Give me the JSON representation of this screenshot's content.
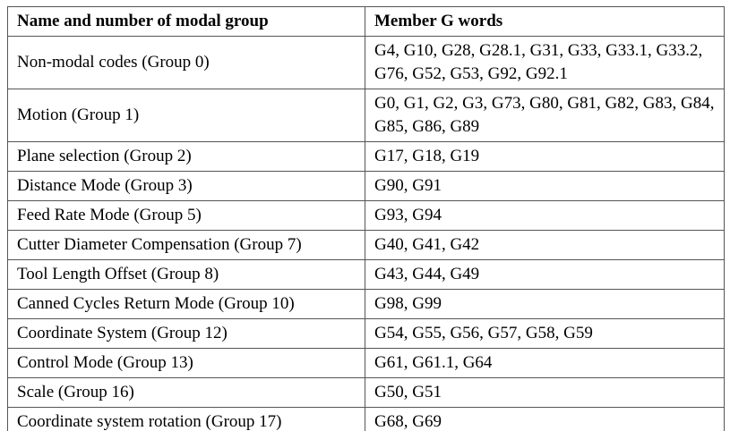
{
  "colors": {
    "background": "#ffffff",
    "border": "#555555",
    "text": "#000000"
  },
  "table": {
    "headers": [
      "Name and number of modal group",
      "Member G words"
    ],
    "rows": [
      {
        "name": "Non-modal codes (Group 0)",
        "gwords": "G4, G10, G28, G28.1, G31, G33, G33.1, G33.2, G76, G52, G53, G92, G92.1"
      },
      {
        "name": "Motion (Group 1)",
        "gwords": "G0, G1, G2, G3, G73, G80, G81, G82, G83, G84, G85, G86, G89"
      },
      {
        "name": "Plane selection (Group 2)",
        "gwords": "G17, G18, G19"
      },
      {
        "name": "Distance Mode (Group 3)",
        "gwords": "G90, G91"
      },
      {
        "name": "Feed Rate Mode (Group 5)",
        "gwords": "G93, G94"
      },
      {
        "name": "Cutter Diameter Compensation (Group 7)",
        "gwords": "G40, G41, G42"
      },
      {
        "name": "Tool Length Offset (Group 8)",
        "gwords": "G43, G44, G49"
      },
      {
        "name": "Canned Cycles Return Mode (Group 10)",
        "gwords": "G98, G99"
      },
      {
        "name": "Coordinate System (Group 12)",
        "gwords": "G54, G55, G56, G57, G58, G59"
      },
      {
        "name": "Control Mode (Group 13)",
        "gwords": "G61, G61.1, G64"
      },
      {
        "name": "Scale (Group 16)",
        "gwords": "G50, G51"
      },
      {
        "name": "Coordinate system rotation (Group 17)",
        "gwords": "G68, G69"
      }
    ]
  }
}
